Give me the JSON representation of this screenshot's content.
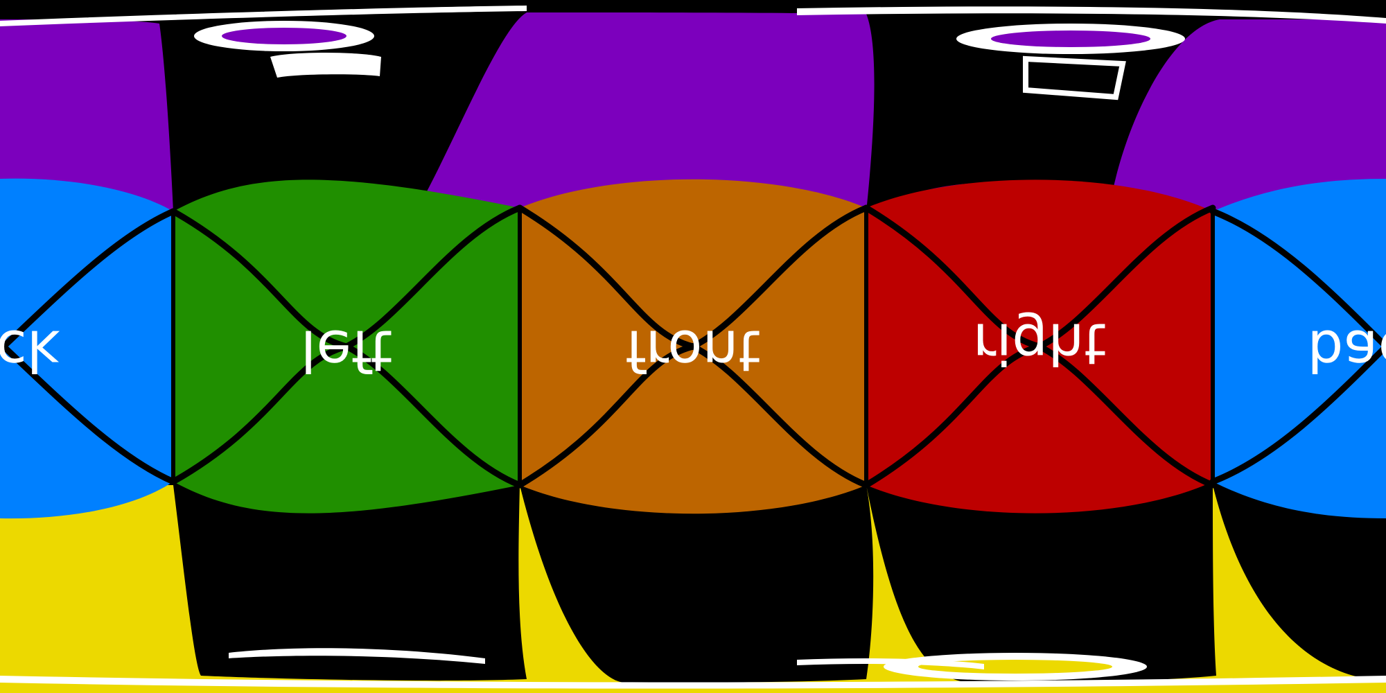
{
  "panorama": {
    "type": "equirectangular cube-face test pattern",
    "faces": [
      {
        "key": "back_left",
        "label": "ck",
        "color": "#0080ff"
      },
      {
        "key": "left",
        "label": "left",
        "color": "#208f00"
      },
      {
        "key": "front",
        "label": "front",
        "color": "#bd6500"
      },
      {
        "key": "right",
        "label": "right",
        "color": "#bd0000"
      },
      {
        "key": "back_right",
        "label": "bac",
        "color": "#0080ff"
      }
    ],
    "top": {
      "color": "#7c00bd"
    },
    "bottom": {
      "color": "#ecd900"
    },
    "seam_color": "#000000",
    "distorted_text_color": "#ffffff"
  }
}
